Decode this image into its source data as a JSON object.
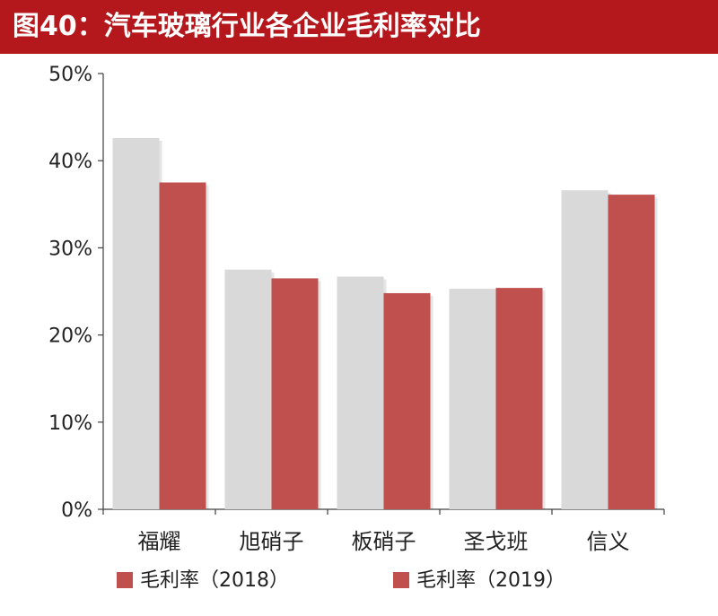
{
  "header": {
    "title": "图40：汽车玻璃行业各企业毛利率对比"
  },
  "colors": {
    "title_bg": "#b5181c",
    "series_2018": "#d9d9d9",
    "series_2019": "#c0504d",
    "axis": "#404040"
  },
  "chart_data": {
    "type": "bar",
    "title": "图40：汽车玻璃行业各企业毛利率对比",
    "xlabel": "",
    "ylabel": "",
    "categories": [
      "福耀",
      "旭硝子",
      "板硝子",
      "圣戈班",
      "信义"
    ],
    "series": [
      {
        "name": "毛利率（2018）",
        "values": [
          42.6,
          27.5,
          26.7,
          25.3,
          36.6
        ]
      },
      {
        "name": "毛利率（2019）",
        "values": [
          37.5,
          26.5,
          24.8,
          25.4,
          36.1
        ]
      }
    ],
    "ylim": [
      0,
      50
    ],
    "yticks": [
      "0%",
      "10%",
      "20%",
      "30%",
      "40%",
      "50%"
    ],
    "grid": false,
    "legend_position": "bottom"
  }
}
